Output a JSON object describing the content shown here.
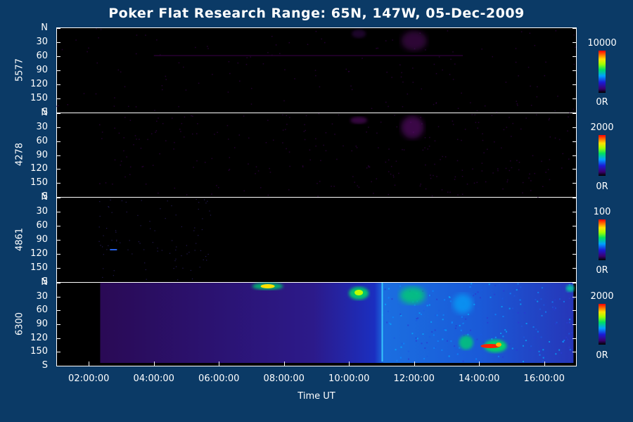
{
  "chart_data": {
    "type": "heatmap",
    "title": "Poker Flat Research Range: 65N, 147W, 05-Dec-2009",
    "xlabel": "Time UT",
    "x_ticks": [
      "02:00:00",
      "04:00:00",
      "06:00:00",
      "08:00:00",
      "10:00:00",
      "12:00:00",
      "14:00:00",
      "16:00:00"
    ],
    "x_range_hours": [
      1.0,
      17.0
    ],
    "y_ticks": [
      "N",
      "30",
      "60",
      "90",
      "120",
      "150",
      "S"
    ],
    "panels": [
      {
        "wavelength": "5577",
        "cbar_max": "10000",
        "cbar_min": "0R",
        "intensity_level": "low"
      },
      {
        "wavelength": "4278",
        "cbar_max": "2000",
        "cbar_min": "0R",
        "intensity_level": "low"
      },
      {
        "wavelength": "4861",
        "cbar_max": "100",
        "cbar_min": "0R",
        "intensity_level": "very low"
      },
      {
        "wavelength": "6300",
        "cbar_max": "2000",
        "cbar_min": "0R",
        "intensity_level": "high"
      }
    ],
    "colormap": [
      "#000000",
      "#3b0070",
      "#1b1bd6",
      "#00a0ff",
      "#00e060",
      "#a0ff00",
      "#ffe000",
      "#ff7000",
      "#ff0000"
    ]
  }
}
